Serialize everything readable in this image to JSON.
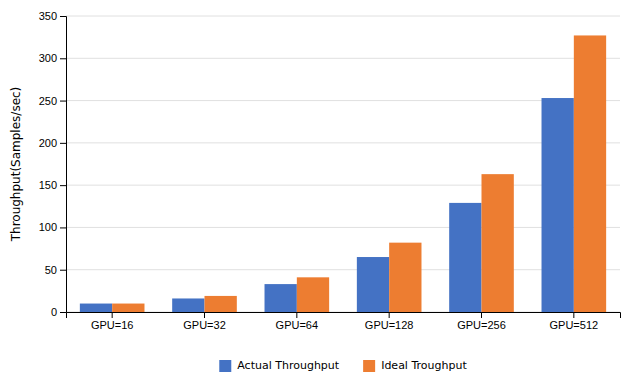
{
  "chart_data": {
    "type": "bar",
    "categories": [
      "GPU=16",
      "GPU=32",
      "GPU=64",
      "GPU=128",
      "GPU=256",
      "GPU=512"
    ],
    "series": [
      {
        "name": "Actual Throughput",
        "color": "#4472C4",
        "values": [
          10,
          16,
          33,
          65,
          129,
          253
        ]
      },
      {
        "name": "Ideal Troughput",
        "color": "#ED7D31",
        "values": [
          10,
          19,
          41,
          82,
          163,
          327
        ]
      }
    ],
    "ylabel": "Throughput(Samples/sec)",
    "ylim": [
      0,
      350
    ],
    "yticks": [
      0,
      50,
      100,
      150,
      200,
      250,
      300,
      350
    ],
    "grid": true,
    "legend": "bottom"
  }
}
